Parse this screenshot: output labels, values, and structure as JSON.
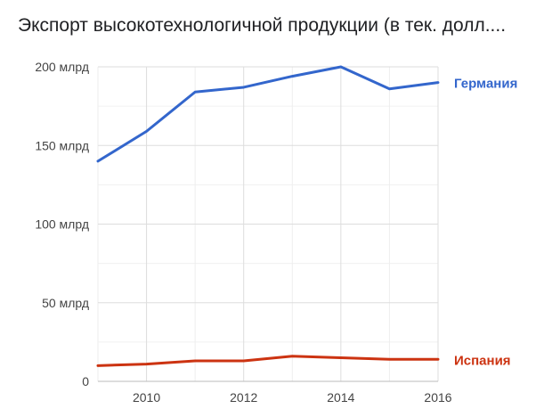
{
  "chart_data": {
    "type": "line",
    "title": "Экспорт высокотехнологичной продукции (в тек. долл....",
    "x": [
      2009,
      2010,
      2011,
      2012,
      2013,
      2014,
      2015,
      2016
    ],
    "xlim": [
      2009,
      2016
    ],
    "x_ticks": [
      2010,
      2012,
      2014,
      2016
    ],
    "x_tick_labels": [
      "2010",
      "2012",
      "2014",
      "2016"
    ],
    "ylim": [
      0,
      200
    ],
    "y_ticks": [
      0,
      50,
      100,
      150,
      200
    ],
    "y_tick_labels": [
      "0",
      "50 млрд",
      "100 млрд",
      "150 млрд",
      "200 млрд"
    ],
    "grid": true,
    "series": [
      {
        "name": "Германия",
        "color": "#3366cc",
        "values": [
          140,
          159,
          184,
          187,
          194,
          200,
          186,
          190
        ]
      },
      {
        "name": "Испания",
        "color": "#cc3311",
        "values": [
          10,
          11,
          13,
          13,
          16,
          15,
          14,
          14
        ]
      }
    ]
  }
}
